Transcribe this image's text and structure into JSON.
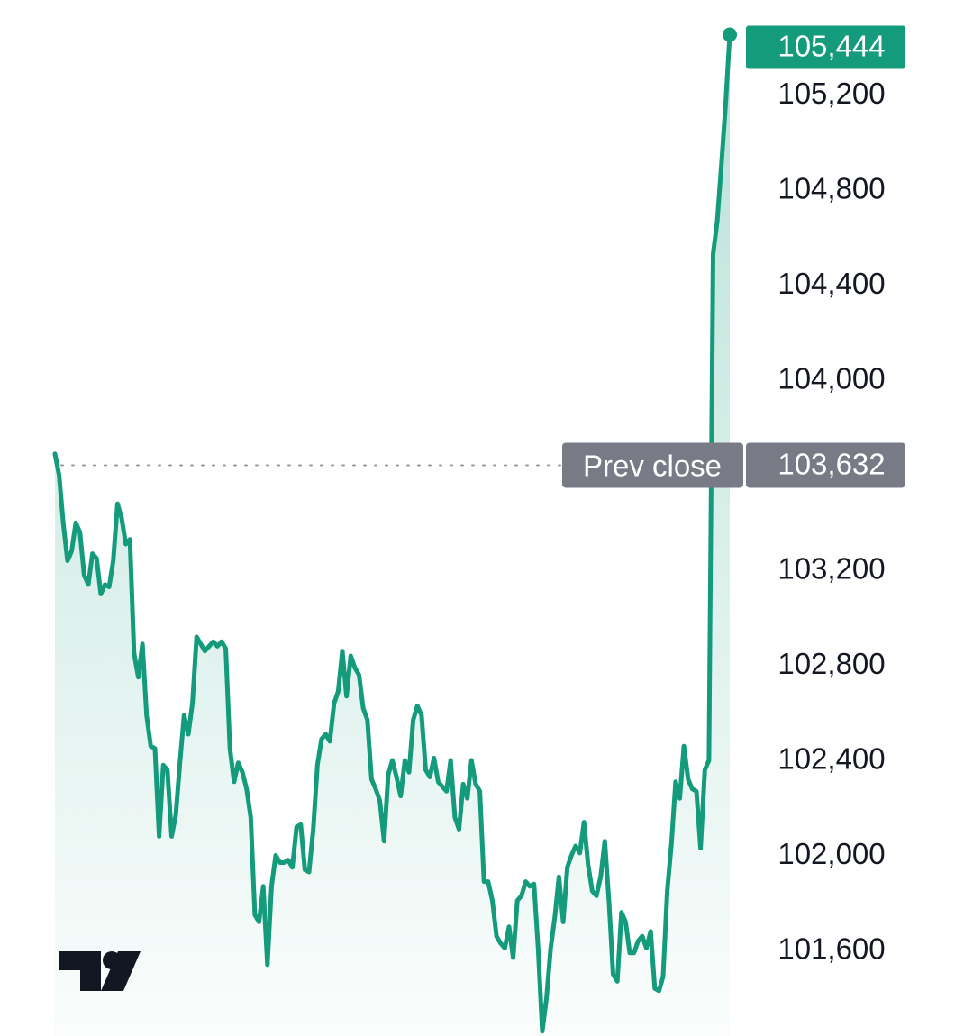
{
  "chart_data": {
    "type": "area",
    "title": "",
    "xlabel": "",
    "ylabel": "",
    "ylim": [
      101230,
      105590
    ],
    "y_ticks": [
      105200,
      104800,
      104400,
      104000,
      103200,
      102800,
      102400,
      102000,
      101600
    ],
    "y_tick_labels": [
      "105,200",
      "104,800",
      "104,400",
      "104,000",
      "103,200",
      "102,800",
      "102,400",
      "102,000",
      "101,600"
    ],
    "grid": false,
    "last_price": 105444,
    "last_price_label": "105,444",
    "prev_close": 103632,
    "prev_close_value_label": "103,632",
    "prev_close_text": "Prev close",
    "colors": {
      "line": "#139b7b",
      "last_tag": "#139b7b",
      "prev_tag": "#787b86",
      "prev_line": "#9598a1",
      "text": "#131722"
    },
    "series": [
      {
        "values": [
          103680,
          103590,
          103390,
          103230,
          103270,
          103390,
          103350,
          103170,
          103130,
          103260,
          103240,
          103090,
          103130,
          103120,
          103230,
          103470,
          103410,
          103300,
          103320,
          102840,
          102740,
          102880,
          102580,
          102450,
          102440,
          102070,
          102370,
          102350,
          102070,
          102160,
          102380,
          102580,
          102500,
          102630,
          102910,
          102880,
          102850,
          102870,
          102890,
          102870,
          102890,
          102860,
          102440,
          102300,
          102380,
          102340,
          102270,
          102150,
          101740,
          101710,
          101860,
          101530,
          101860,
          101990,
          101960,
          101960,
          101970,
          101940,
          102110,
          102120,
          101930,
          101920,
          102100,
          102370,
          102480,
          102500,
          102470,
          102630,
          102680,
          102850,
          102660,
          102830,
          102780,
          102750,
          102610,
          102560,
          102310,
          102270,
          102220,
          102050,
          102330,
          102390,
          102320,
          102240,
          102390,
          102340,
          102560,
          102620,
          102580,
          102350,
          102320,
          102400,
          102300,
          102280,
          102260,
          102390,
          102150,
          102100,
          102290,
          102230,
          102390,
          102290,
          102260,
          101880,
          101880,
          101800,
          101650,
          101620,
          101600,
          101690,
          101560,
          101800,
          101820,
          101880,
          101860,
          101870,
          101600,
          101250,
          101390,
          101600,
          101730,
          101900,
          101710,
          101940,
          101990,
          102030,
          102000,
          102130,
          101950,
          101840,
          101820,
          101900,
          102050,
          101800,
          101490,
          101460,
          101750,
          101710,
          101580,
          101580,
          101630,
          101650,
          101600,
          101670,
          101430,
          101420,
          101480,
          101840,
          102040,
          102300,
          102230,
          102450,
          102310,
          102270,
          102260,
          102020,
          102350,
          102390,
          104520,
          104660,
          104900,
          105150,
          105444
        ]
      }
    ]
  },
  "watermark": {
    "name": "tradingview-logo"
  }
}
